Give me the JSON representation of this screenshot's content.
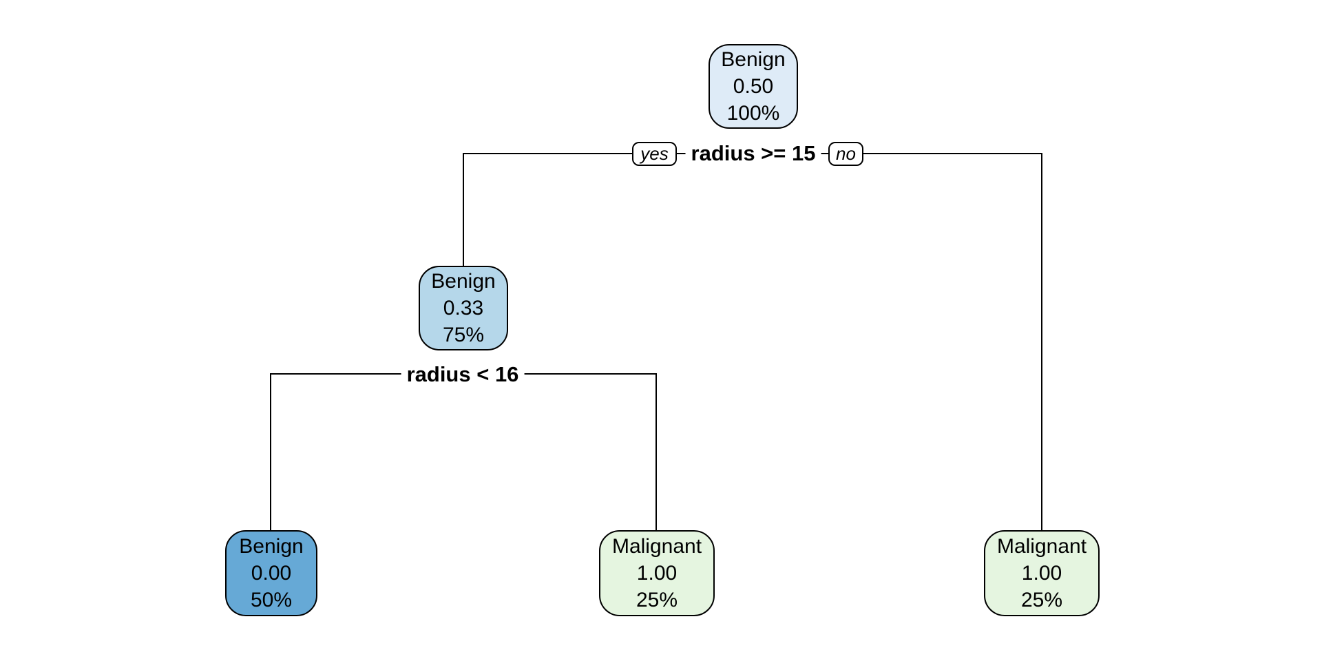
{
  "diagram": {
    "type": "decision-tree",
    "background": "#ffffff",
    "edge_color": "#000000",
    "text_color": "#000000"
  },
  "nodes": {
    "root": {
      "label": "Benign",
      "prob": "0.50",
      "cover": "100%",
      "fill": "#deebf7"
    },
    "left_child": {
      "label": "Benign",
      "prob": "0.33",
      "cover": "75%",
      "fill": "#b5d7ea"
    },
    "leaf_benign": {
      "label": "Benign",
      "prob": "0.00",
      "cover": "50%",
      "fill": "#66a9d6"
    },
    "leaf_mal_mid": {
      "label": "Malignant",
      "prob": "1.00",
      "cover": "25%",
      "fill": "#e5f5e0"
    },
    "leaf_mal_right": {
      "label": "Malignant",
      "prob": "1.00",
      "cover": "25%",
      "fill": "#e5f5e0"
    }
  },
  "splits": {
    "root_split": {
      "condition": "radius >= 15",
      "yes_label": "yes",
      "no_label": "no"
    },
    "second_split": {
      "condition": "radius < 16"
    }
  }
}
